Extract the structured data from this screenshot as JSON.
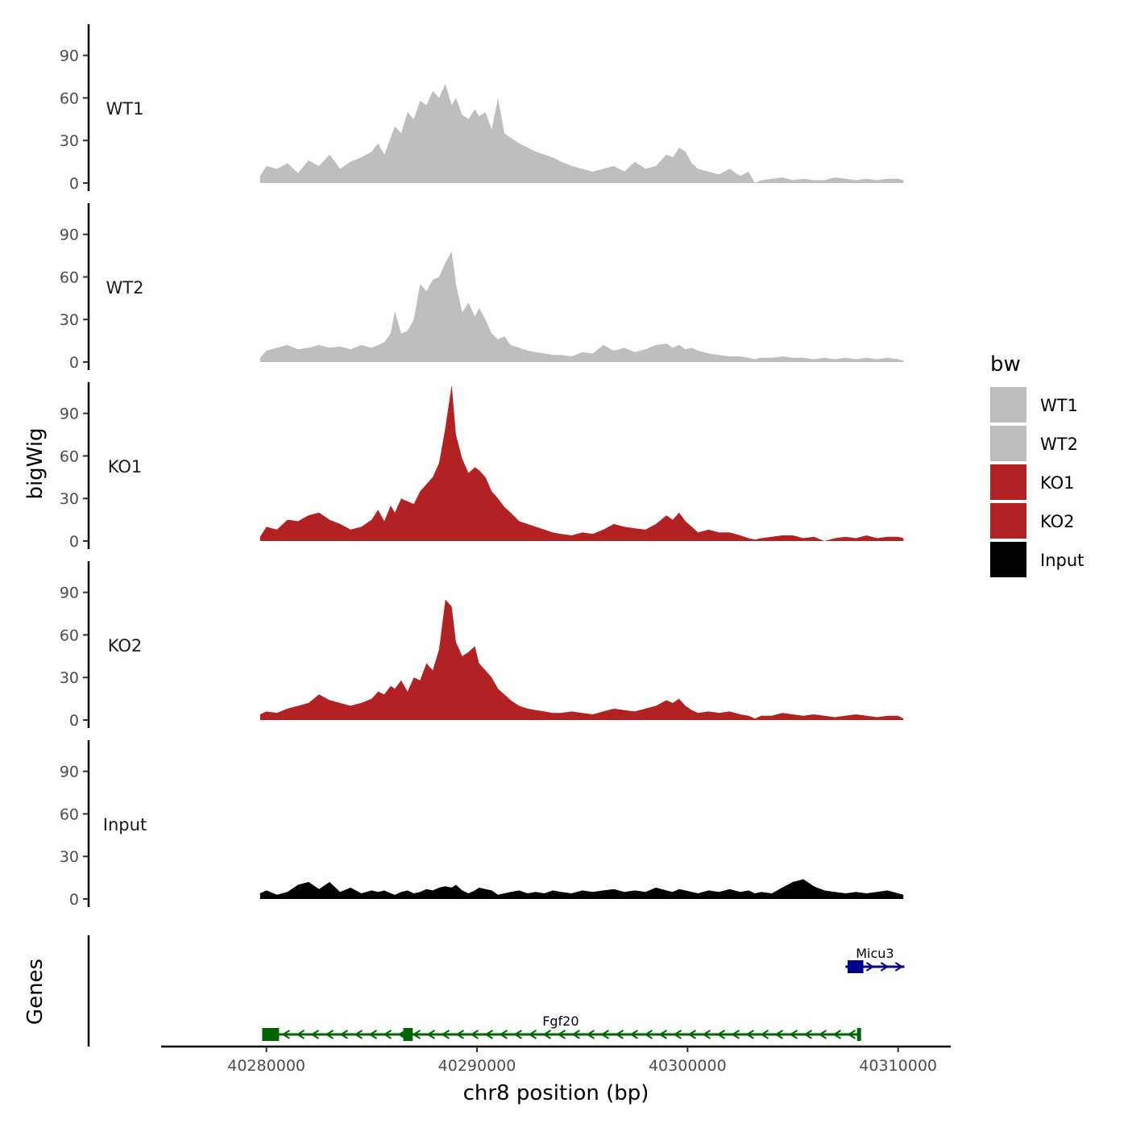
{
  "chart_data": {
    "type": "area",
    "y_axis_title": "bigWig",
    "x_axis_title": "chr8 position (bp)",
    "x_range": [
      40275000,
      40312500
    ],
    "data_x_range": [
      40279700,
      40310250
    ],
    "x_ticks": [
      40280000,
      40290000,
      40300000,
      40310000
    ],
    "x_tick_labels": [
      "40280000",
      "40290000",
      "40300000",
      "40310000"
    ],
    "y_range": [
      0,
      112
    ],
    "y_ticks": [
      0,
      30,
      60,
      90
    ],
    "y_tick_labels": [
      "0",
      "30",
      "60",
      "90"
    ],
    "legend": {
      "title": "bw",
      "items": [
        {
          "label": "WT1",
          "color": "#bebebe"
        },
        {
          "label": "WT2",
          "color": "#bebebe"
        },
        {
          "label": "KO1",
          "color": "#b22222"
        },
        {
          "label": "KO2",
          "color": "#b22222"
        },
        {
          "label": "Input",
          "color": "#000000"
        }
      ]
    },
    "series": [
      {
        "name": "WT1",
        "color": "#bebebe",
        "x": [
          40279700,
          40280000,
          40280500,
          40281000,
          40281500,
          40282000,
          40282500,
          40283000,
          40283500,
          40284000,
          40284500,
          40285000,
          40285300,
          40285600,
          40285900,
          40286100,
          40286400,
          40286700,
          40287000,
          40287300,
          40287600,
          40287900,
          40288200,
          40288500,
          40288800,
          40289000,
          40289300,
          40289600,
          40289900,
          40290100,
          40290400,
          40290700,
          40291000,
          40291300,
          40291600,
          40292000,
          40292400,
          40292800,
          40293200,
          40293600,
          40294000,
          40294500,
          40295000,
          40295500,
          40296000,
          40296500,
          40297000,
          40297500,
          40298000,
          40298500,
          40299000,
          40299300,
          40299600,
          40299900,
          40300200,
          40300500,
          40301000,
          40301500,
          40302000,
          40302500,
          40302900,
          40303200,
          40303500,
          40304000,
          40304500,
          40305000,
          40305500,
          40306000,
          40306500,
          40307000,
          40307500,
          40308000,
          40308500,
          40309000,
          40309500,
          40310000,
          40310250
        ],
        "values": [
          5,
          12,
          10,
          14,
          7,
          16,
          12,
          20,
          10,
          15,
          18,
          22,
          28,
          20,
          32,
          40,
          35,
          50,
          45,
          58,
          55,
          65,
          60,
          70,
          55,
          60,
          48,
          45,
          52,
          47,
          50,
          38,
          60,
          35,
          32,
          28,
          25,
          22,
          20,
          18,
          15,
          12,
          10,
          8,
          10,
          12,
          8,
          15,
          10,
          12,
          20,
          18,
          25,
          22,
          14,
          10,
          8,
          6,
          10,
          5,
          8,
          0,
          2,
          3,
          4,
          2,
          3,
          2,
          2,
          4,
          3,
          2,
          3,
          2,
          3,
          3,
          2
        ],
        "label": "WT1"
      },
      {
        "name": "WT2",
        "color": "#bebebe",
        "x": [
          40279700,
          40280000,
          40280500,
          40281000,
          40281500,
          40282000,
          40282500,
          40283000,
          40283500,
          40284000,
          40284500,
          40285000,
          40285300,
          40285600,
          40285900,
          40286100,
          40286400,
          40286700,
          40287000,
          40287300,
          40287600,
          40287900,
          40288200,
          40288500,
          40288800,
          40289000,
          40289300,
          40289600,
          40289900,
          40290100,
          40290400,
          40290700,
          40291000,
          40291300,
          40291600,
          40292000,
          40292400,
          40292800,
          40293200,
          40293600,
          40294000,
          40294500,
          40295000,
          40295500,
          40296000,
          40296500,
          40297000,
          40297500,
          40298000,
          40298500,
          40299000,
          40299300,
          40299600,
          40299900,
          40300200,
          40300500,
          40301000,
          40301500,
          40302000,
          40302500,
          40302900,
          40303200,
          40303500,
          40304000,
          40304500,
          40305000,
          40305500,
          40306000,
          40306500,
          40307000,
          40307500,
          40308000,
          40308500,
          40309000,
          40309500,
          40310000,
          40310250
        ],
        "values": [
          3,
          8,
          10,
          12,
          9,
          10,
          12,
          10,
          11,
          9,
          12,
          10,
          12,
          14,
          20,
          36,
          20,
          22,
          30,
          55,
          50,
          58,
          60,
          70,
          78,
          55,
          35,
          42,
          32,
          38,
          30,
          20,
          16,
          18,
          12,
          10,
          8,
          7,
          6,
          5,
          5,
          4,
          7,
          6,
          12,
          8,
          10,
          7,
          9,
          12,
          13,
          10,
          12,
          9,
          10,
          8,
          6,
          5,
          4,
          4,
          3,
          2,
          3,
          3,
          4,
          3,
          3,
          2,
          3,
          2,
          3,
          2,
          3,
          2,
          3,
          2,
          1
        ],
        "label": "WT2"
      },
      {
        "name": "KO1",
        "color": "#b22222",
        "x": [
          40279700,
          40280000,
          40280500,
          40281000,
          40281500,
          40282000,
          40282500,
          40283000,
          40283500,
          40284000,
          40284500,
          40285000,
          40285300,
          40285600,
          40285900,
          40286100,
          40286400,
          40286700,
          40287000,
          40287300,
          40287600,
          40287900,
          40288200,
          40288500,
          40288800,
          40289000,
          40289300,
          40289600,
          40289900,
          40290100,
          40290400,
          40290700,
          40291000,
          40291300,
          40291600,
          40292000,
          40292400,
          40292800,
          40293200,
          40293600,
          40294000,
          40294500,
          40295000,
          40295500,
          40296000,
          40296500,
          40297000,
          40297500,
          40298000,
          40298500,
          40299000,
          40299300,
          40299600,
          40299900,
          40300200,
          40300500,
          40301000,
          40301500,
          40302000,
          40302500,
          40302900,
          40303200,
          40303500,
          40304000,
          40304500,
          40305000,
          40305500,
          40306000,
          40306500,
          40307000,
          40307500,
          40308000,
          40308500,
          40309000,
          40309500,
          40310000,
          40310250
        ],
        "values": [
          3,
          10,
          8,
          15,
          14,
          18,
          20,
          15,
          12,
          8,
          10,
          15,
          22,
          14,
          25,
          20,
          30,
          28,
          26,
          35,
          40,
          45,
          55,
          80,
          110,
          75,
          58,
          48,
          52,
          50,
          45,
          35,
          30,
          24,
          20,
          14,
          12,
          10,
          8,
          6,
          5,
          4,
          6,
          5,
          8,
          12,
          10,
          9,
          8,
          12,
          18,
          15,
          20,
          14,
          10,
          6,
          8,
          6,
          6,
          4,
          2,
          1,
          2,
          3,
          4,
          4,
          2,
          3,
          0,
          2,
          3,
          2,
          4,
          2,
          3,
          3,
          2
        ],
        "label": "KO1"
      },
      {
        "name": "KO2",
        "color": "#b22222",
        "x": [
          40279700,
          40280000,
          40280500,
          40281000,
          40281500,
          40282000,
          40282500,
          40283000,
          40283500,
          40284000,
          40284500,
          40285000,
          40285300,
          40285600,
          40285900,
          40286100,
          40286400,
          40286700,
          40287000,
          40287300,
          40287600,
          40287900,
          40288200,
          40288500,
          40288800,
          40289000,
          40289300,
          40289600,
          40289900,
          40290100,
          40290400,
          40290700,
          40291000,
          40291300,
          40291600,
          40292000,
          40292400,
          40292800,
          40293200,
          40293600,
          40294000,
          40294500,
          40295000,
          40295500,
          40296000,
          40296500,
          40297000,
          40297500,
          40298000,
          40298500,
          40299000,
          40299300,
          40299600,
          40299900,
          40300200,
          40300500,
          40301000,
          40301500,
          40302000,
          40302500,
          40302900,
          40303200,
          40303500,
          40304000,
          40304500,
          40305000,
          40305500,
          40306000,
          40306500,
          40307000,
          40307500,
          40308000,
          40308500,
          40309000,
          40309500,
          40310000,
          40310250
        ],
        "values": [
          4,
          6,
          5,
          8,
          10,
          12,
          18,
          14,
          12,
          10,
          12,
          15,
          20,
          18,
          24,
          22,
          28,
          20,
          30,
          28,
          40,
          35,
          50,
          85,
          80,
          55,
          45,
          48,
          52,
          40,
          35,
          30,
          22,
          18,
          14,
          10,
          8,
          7,
          6,
          5,
          5,
          6,
          5,
          4,
          6,
          8,
          7,
          6,
          8,
          10,
          14,
          12,
          15,
          10,
          7,
          5,
          6,
          5,
          6,
          4,
          3,
          1,
          3,
          3,
          5,
          4,
          3,
          4,
          3,
          2,
          3,
          4,
          3,
          2,
          3,
          3,
          1
        ],
        "label": "KO2"
      },
      {
        "name": "Input",
        "color": "#000000",
        "x": [
          40279700,
          40280000,
          40280500,
          40281000,
          40281500,
          40282000,
          40282500,
          40283000,
          40283500,
          40284000,
          40284500,
          40285000,
          40285300,
          40285600,
          40285900,
          40286100,
          40286400,
          40286700,
          40287000,
          40287300,
          40287600,
          40287900,
          40288200,
          40288500,
          40288800,
          40289000,
          40289300,
          40289600,
          40289900,
          40290100,
          40290400,
          40290700,
          40291000,
          40291300,
          40291600,
          40292000,
          40292400,
          40292800,
          40293200,
          40293600,
          40294000,
          40294500,
          40295000,
          40295500,
          40296000,
          40296500,
          40297000,
          40297500,
          40298000,
          40298500,
          40299000,
          40299300,
          40299600,
          40299900,
          40300200,
          40300500,
          40301000,
          40301500,
          40302000,
          40302500,
          40302900,
          40303200,
          40303500,
          40304000,
          40304500,
          40305000,
          40305500,
          40306000,
          40306500,
          40307000,
          40307500,
          40308000,
          40308500,
          40309000,
          40309500,
          40310000,
          40310250
        ],
        "values": [
          4,
          6,
          3,
          5,
          10,
          12,
          7,
          12,
          5,
          8,
          4,
          6,
          5,
          6,
          4,
          3,
          5,
          6,
          4,
          5,
          7,
          6,
          8,
          9,
          8,
          10,
          6,
          4,
          6,
          8,
          7,
          6,
          3,
          4,
          5,
          6,
          4,
          5,
          4,
          6,
          5,
          4,
          6,
          5,
          6,
          7,
          5,
          6,
          5,
          8,
          6,
          5,
          7,
          6,
          5,
          4,
          6,
          5,
          7,
          5,
          6,
          4,
          5,
          4,
          8,
          12,
          14,
          9,
          6,
          5,
          4,
          5,
          4,
          5,
          6,
          4,
          3
        ],
        "label": "Input"
      }
    ],
    "genes": [
      {
        "name": "Fgf20",
        "color": "#006400",
        "strand": "-",
        "start": 40279800,
        "end": 40308150,
        "exons": [
          [
            40279800,
            40280600
          ],
          [
            40286500,
            40286950
          ],
          [
            40308050,
            40308150
          ]
        ],
        "label": "Fgf20"
      },
      {
        "name": "Micu3",
        "color": "#00008b",
        "strand": "+",
        "start": 40307500,
        "end": 40310300,
        "exons": [
          [
            40307600,
            40308350
          ]
        ],
        "label": "Micu3"
      }
    ],
    "genes_track_title": "Genes"
  }
}
